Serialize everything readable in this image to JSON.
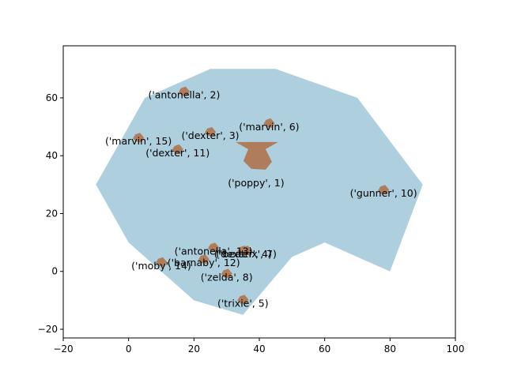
{
  "chart_data": {
    "type": "scatter",
    "title": "",
    "xlabel": "",
    "ylabel": "",
    "xlim": [
      -20,
      100
    ],
    "ylim": [
      -23,
      78
    ],
    "xticks": [
      -20,
      0,
      20,
      40,
      60,
      80,
      100
    ],
    "yticks": [
      -20,
      0,
      20,
      40,
      60
    ],
    "grid": false,
    "colors": {
      "region": "#aecfdd",
      "marker": "#b07d5c",
      "axes": "#000000"
    },
    "region_polygon": [
      [
        -10,
        30
      ],
      [
        0,
        10
      ],
      [
        20,
        -10
      ],
      [
        35,
        -15
      ],
      [
        50,
        5
      ],
      [
        60,
        10
      ],
      [
        80,
        0
      ],
      [
        90,
        30
      ],
      [
        70,
        60
      ],
      [
        45,
        70
      ],
      [
        25,
        70
      ],
      [
        5,
        60
      ],
      [
        -10,
        30
      ]
    ],
    "points": [
      {
        "label": "('poppy', 1)",
        "x": 39,
        "y": 39,
        "size": "large"
      },
      {
        "label": "('antonella', 2)",
        "x": 17,
        "y": 62
      },
      {
        "label": "('dexter', 3)",
        "x": 25,
        "y": 48
      },
      {
        "label": "('dexter', 4)",
        "x": 35,
        "y": 7
      },
      {
        "label": "('trixie', 5)",
        "x": 35,
        "y": -10
      },
      {
        "label": "('marvin', 6)",
        "x": 43,
        "y": 51
      },
      {
        "label": "('beatrix', 7)",
        "x": 36,
        "y": 7
      },
      {
        "label": "('zelda', 8)",
        "x": 30,
        "y": -1
      },
      {
        "label": "('gunner', 10)",
        "x": 78,
        "y": 28
      },
      {
        "label": "('dexter', 11)",
        "x": 15,
        "y": 42
      },
      {
        "label": "('barnaby', 12)",
        "x": 23,
        "y": 4
      },
      {
        "label": "('antonella', 13)",
        "x": 26,
        "y": 8
      },
      {
        "label": "('moby', 14)",
        "x": 10,
        "y": 3
      },
      {
        "label": "('marvin', 15)",
        "x": 3,
        "y": 46
      }
    ]
  }
}
